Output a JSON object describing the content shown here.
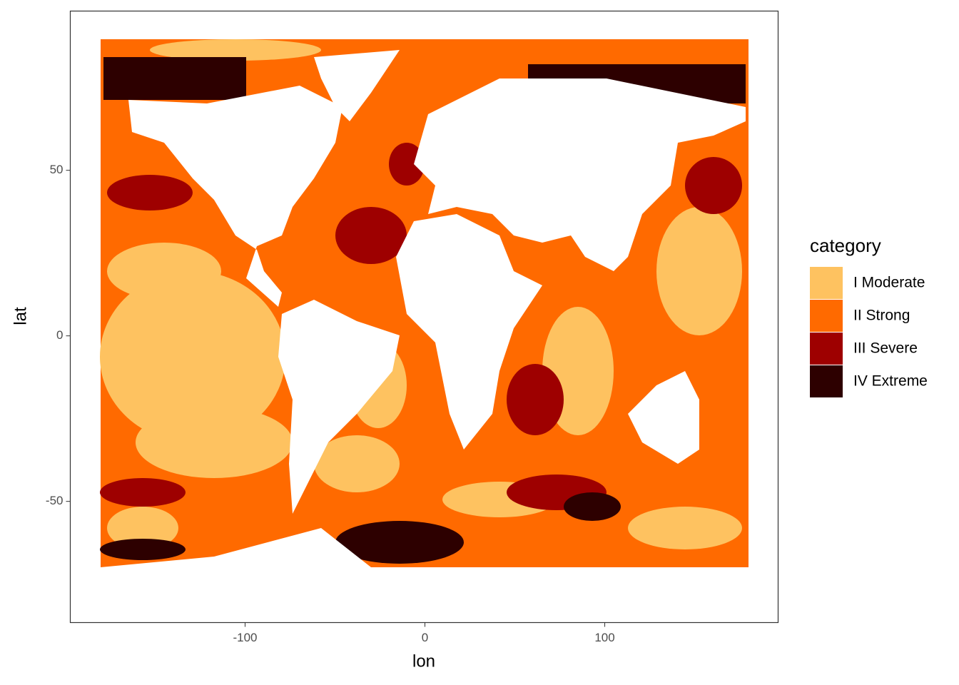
{
  "chart_data": {
    "type": "raster",
    "x_label": "lon",
    "y_label": "lat",
    "xlim": [
      -197.2,
      196.4
    ],
    "xticks": [
      -100,
      0,
      100
    ],
    "ylim": [
      -86.6,
      98.1
    ],
    "yticks": [
      -50,
      0,
      50
    ],
    "grid": false,
    "legend_title": "category",
    "legend_position": "right",
    "series": [
      {
        "name": "I Moderate",
        "color": "#fec260"
      },
      {
        "name": "II Strong",
        "color": "#ff6a00"
      },
      {
        "name": "III Severe",
        "color": "#9e0000"
      },
      {
        "name": "IV Extreme",
        "color": "#2d0000"
      }
    ]
  }
}
